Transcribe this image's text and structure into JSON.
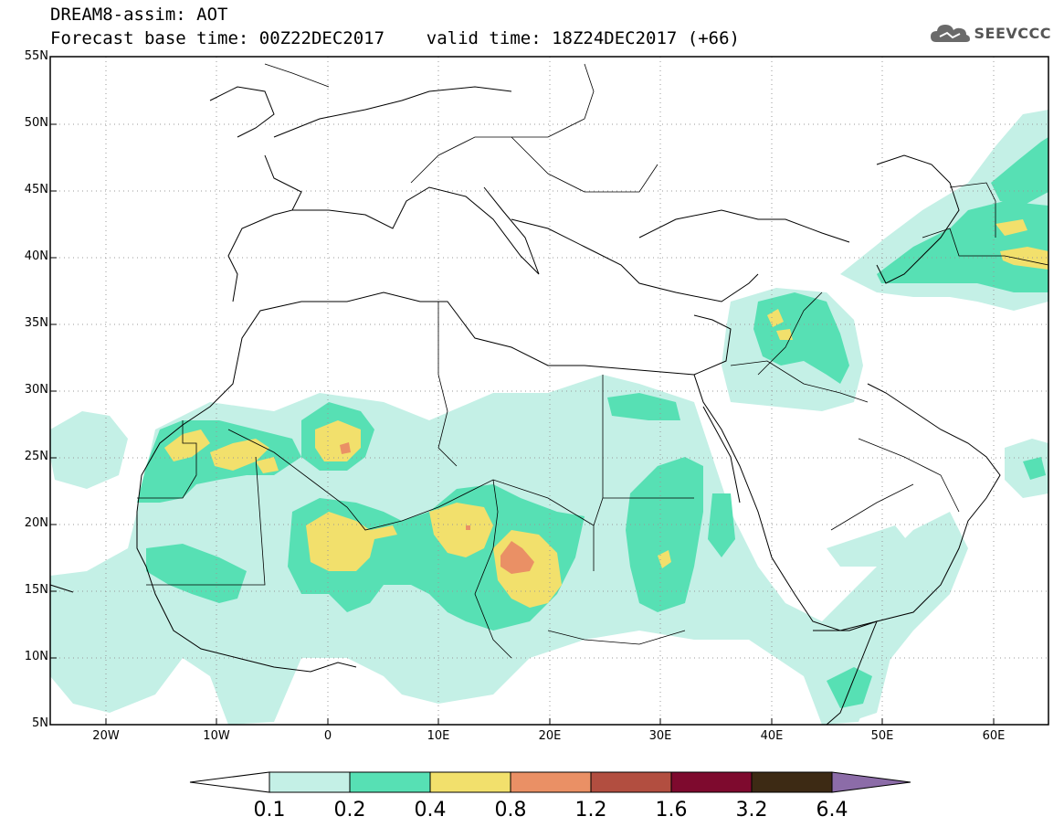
{
  "header": {
    "line1": "DREAM8-assim: AOT",
    "line2": "Forecast base time: 00Z22DEC2017    valid time: 18Z24DEC2017 (+66)"
  },
  "brand": {
    "name": "SEEVCCC",
    "icon": "cloud-icon"
  },
  "map": {
    "lat_labels": [
      "55N",
      "50N",
      "45N",
      "40N",
      "35N",
      "30N",
      "25N",
      "20N",
      "15N",
      "10N",
      "5N"
    ],
    "lon_labels": [
      "20W",
      "10W",
      "0",
      "10E",
      "20E",
      "30E",
      "40E",
      "50E",
      "60E"
    ],
    "lat_range": [
      5,
      55
    ],
    "lon_range": [
      -25,
      65
    ],
    "grid": "dotted"
  },
  "legend": {
    "labels": [
      "0.1",
      "0.2",
      "0.4",
      "0.8",
      "1.2",
      "1.6",
      "3.2",
      "6.4"
    ],
    "colors": [
      "#c4f0e6",
      "#57e0b4",
      "#f2e06c",
      "#ea9065",
      "#b24e40",
      "#7e0a2e",
      "#3d2a14",
      "#8c6ca8"
    ]
  }
}
